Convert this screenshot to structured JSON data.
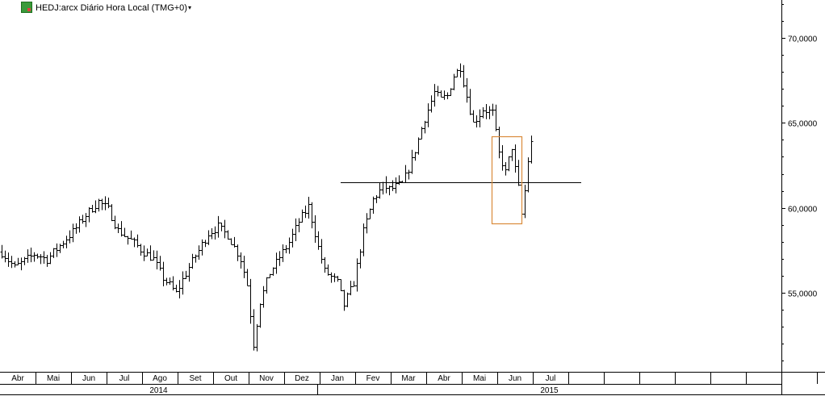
{
  "header": {
    "title": "HEDJ:arcx Diário Hora Local (TMG+0)",
    "dropdown_glyph": "▾",
    "logo_icon": "chart-logo-icon"
  },
  "colors": {
    "bars": "#000000",
    "highlight_box": "#d98a3a",
    "level_line": "#000000",
    "axis": "#000000"
  },
  "chart_data": {
    "type": "ohlc",
    "title": "HEDJ:arcx Diário Hora Local (TMG+0)",
    "ylim": [
      50.5,
      72.0
    ],
    "y_ticks": [
      {
        "value": 55,
        "label": "55,0000"
      },
      {
        "value": 60,
        "label": "60,0000"
      },
      {
        "value": 65,
        "label": "65,0000"
      },
      {
        "value": 70,
        "label": "70,0000"
      }
    ],
    "months": [
      "Abr",
      "Mai",
      "Jun",
      "Jul",
      "Ago",
      "Set",
      "Out",
      "Nov",
      "Dez",
      "Jan",
      "Fev",
      "Mar",
      "Abr",
      "Mai",
      "Jun",
      "Jul",
      "",
      "",
      "",
      "",
      "",
      "",
      ""
    ],
    "years": [
      "2014",
      "2015"
    ],
    "grid": false,
    "horizontal_level": 61.5,
    "highlight_range": {
      "from_index": 152,
      "to_index": 161,
      "low": 59.1,
      "high": 64.2
    },
    "price_path": [
      [
        0,
        57.4
      ],
      [
        4,
        56.5
      ],
      [
        10,
        57.3
      ],
      [
        14,
        57.0
      ],
      [
        18,
        57.8
      ],
      [
        22,
        58.6
      ],
      [
        26,
        59.6
      ],
      [
        30,
        60.4
      ],
      [
        33,
        59.9
      ],
      [
        36,
        58.7
      ],
      [
        40,
        58.1
      ],
      [
        44,
        57.4
      ],
      [
        47,
        57.0
      ],
      [
        50,
        55.9
      ],
      [
        54,
        55.0
      ],
      [
        56,
        55.8
      ],
      [
        60,
        57.2
      ],
      [
        64,
        58.5
      ],
      [
        67,
        58.9
      ],
      [
        70,
        58.4
      ],
      [
        74,
        57.0
      ],
      [
        76,
        55.5
      ],
      [
        78,
        52.0
      ],
      [
        80,
        54.5
      ],
      [
        83,
        56.2
      ],
      [
        87,
        57.4
      ],
      [
        89,
        58.0
      ],
      [
        92,
        59.2
      ],
      [
        95,
        60.1
      ],
      [
        98,
        57.7
      ],
      [
        100,
        56.3
      ],
      [
        104,
        55.6
      ],
      [
        106,
        54.3
      ],
      [
        109,
        55.6
      ],
      [
        112,
        58.6
      ],
      [
        115,
        60.5
      ],
      [
        118,
        61.3
      ],
      [
        120,
        61.1
      ],
      [
        124,
        61.4
      ],
      [
        127,
        62.8
      ],
      [
        131,
        65.3
      ],
      [
        134,
        66.8
      ],
      [
        136,
        66.4
      ],
      [
        138,
        66.6
      ],
      [
        140,
        67.8
      ],
      [
        142,
        68.3
      ],
      [
        144,
        66.6
      ],
      [
        146,
        65.0
      ],
      [
        149,
        65.8
      ],
      [
        152,
        65.6
      ],
      [
        154,
        63.2
      ],
      [
        156,
        62.1
      ],
      [
        158,
        63.6
      ],
      [
        159,
        62.3
      ],
      [
        160,
        61.2
      ],
      [
        161,
        59.6
      ],
      [
        162,
        61.0
      ],
      [
        163,
        62.8
      ],
      [
        164,
        63.8
      ]
    ],
    "bar_count": 165
  }
}
